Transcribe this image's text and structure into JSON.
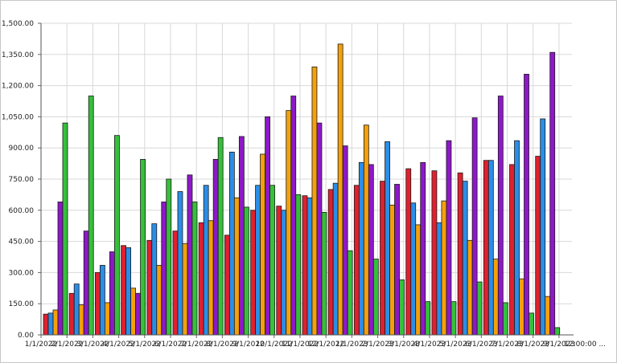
{
  "chart_data": {
    "type": "bar",
    "title": "",
    "xlabel": "",
    "ylabel": "",
    "ylim": [
      0,
      1500
    ],
    "y_ticks": [
      "0.00",
      "150.00",
      "300.00",
      "450.00",
      "600.00",
      "750.00",
      "900.00",
      "1,050.00",
      "1,200.00",
      "1,350.00",
      "1,500.00"
    ],
    "grid": true,
    "legend": "none",
    "categories": [
      "1/1/2022",
      "2/1/2022",
      "3/1/2022",
      "4/1/2022",
      "5/1/2022",
      "6/1/2022",
      "7/1/2022",
      "8/1/2022",
      "9/1/2022",
      "10/1/2022",
      "11/1/2022",
      "12/1/2022",
      "1/1/2023",
      "2/1/2023",
      "3/1/2023",
      "4/1/2023",
      "5/1/2023",
      "6/1/2023",
      "7/1/2023",
      "8/1/2023",
      "9/1/2023"
    ],
    "x_tick_labels": [
      "1/1/2022",
      "2/1/2022",
      "3/1/2022",
      "4/1/2022",
      "5/1/2022",
      "6/1/2022",
      "7/1/2022",
      "8/1/2022",
      "9/1/2022",
      "10/1/2022",
      "11/1/2022",
      "12/1/2022",
      "1/1/2023",
      "2/1/2023",
      "3/1/2023",
      "4/1/2023",
      "5/1/2023",
      "6/1/2023",
      "7/1/2023",
      "8/1/2023",
      "9/1/2023",
      "12:00:00 ..."
    ],
    "series": [
      {
        "color": "#e0202e",
        "values": [
          100,
          200,
          300,
          430,
          455,
          500,
          540,
          480,
          600,
          620,
          670,
          700,
          720,
          740,
          800,
          790,
          780,
          840,
          820,
          860,
          null
        ]
      },
      {
        "color": "#2a8ee8",
        "values": [
          105,
          245,
          335,
          420,
          535,
          690,
          720,
          880,
          720,
          600,
          660,
          730,
          830,
          930,
          635,
          540,
          740,
          840,
          935,
          1040,
          null
        ]
      },
      {
        "color": "#f5a00a",
        "values": [
          120,
          145,
          155,
          225,
          335,
          440,
          550,
          660,
          870,
          1080,
          1290,
          1400,
          1010,
          625,
          530,
          645,
          455,
          365,
          270,
          185,
          null
        ]
      },
      {
        "color": "#8e18c8",
        "values": [
          640,
          500,
          400,
          200,
          640,
          770,
          845,
          955,
          1050,
          1150,
          1020,
          910,
          820,
          725,
          830,
          935,
          1045,
          1150,
          1255,
          1360,
          null
        ]
      },
      {
        "color": "#35c03a",
        "values": [
          1020,
          1150,
          960,
          845,
          750,
          640,
          950,
          615,
          720,
          675,
          590,
          405,
          365,
          265,
          160,
          160,
          255,
          155,
          105,
          35,
          null
        ]
      }
    ]
  }
}
